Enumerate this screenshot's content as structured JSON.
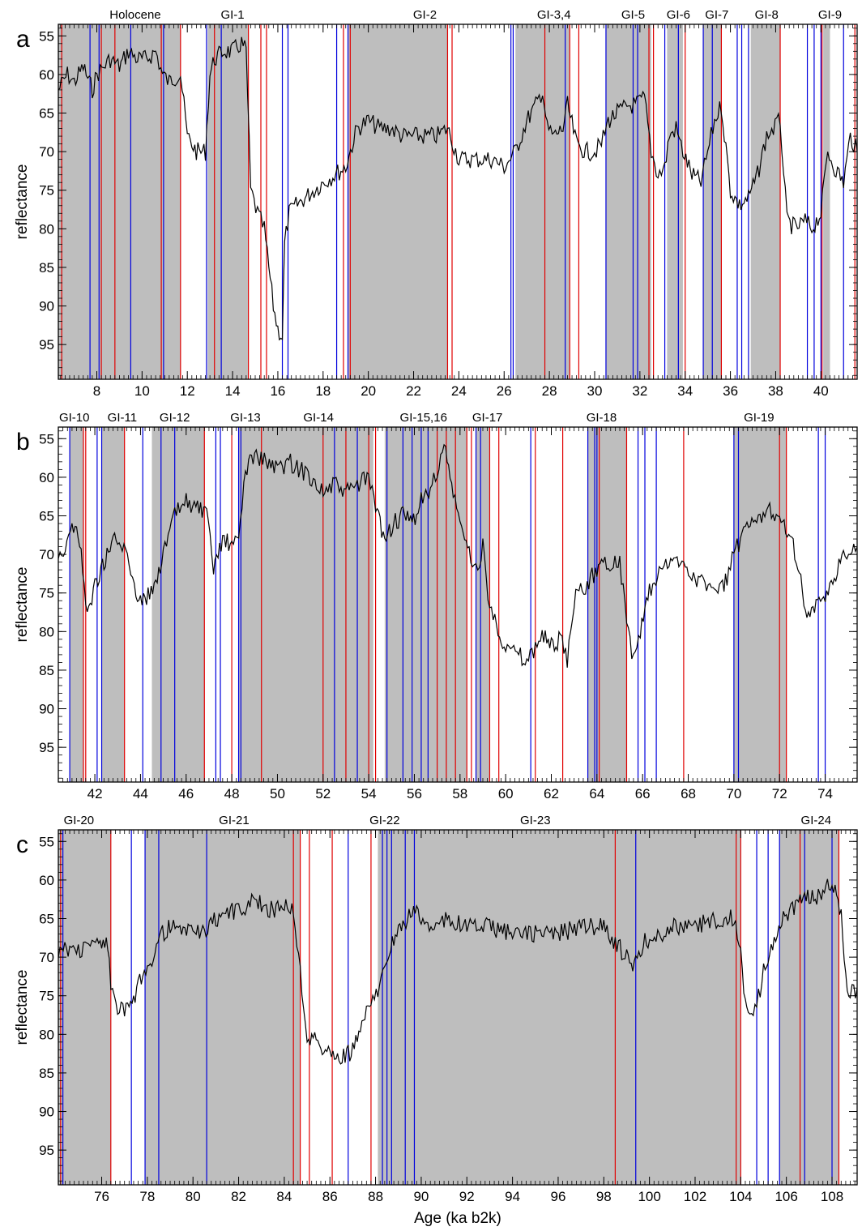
{
  "xlabel": "Age (ka b2k)",
  "colors": {
    "interstadial_shade": "#bebebe",
    "boundary_a": "#e00000",
    "boundary_b": "#0000dd",
    "trace": "#000000"
  },
  "chart_data": [
    {
      "type": "line",
      "panel_label": "a",
      "ylabel": "reflectance",
      "yreversed": true,
      "xlim": [
        6.3,
        41.6
      ],
      "ylim": [
        53.5,
        99.5
      ],
      "xticks": [
        "8",
        "10",
        "12",
        "14",
        "16",
        "18",
        "20",
        "22",
        "24",
        "26",
        "28",
        "30",
        "32",
        "34",
        "36",
        "38",
        "40"
      ],
      "xtick_values": [
        8,
        10,
        12,
        14,
        16,
        18,
        20,
        22,
        24,
        26,
        28,
        30,
        32,
        34,
        36,
        38,
        40
      ],
      "yticks": [
        "55",
        "60",
        "65",
        "70",
        "75",
        "80",
        "85",
        "90",
        "95"
      ],
      "ytick_values": [
        55,
        60,
        65,
        70,
        75,
        80,
        85,
        90,
        95
      ],
      "events": [
        {
          "label": "Holocene",
          "x": 9.7,
          "start": 6.3,
          "end": 11.7
        },
        {
          "label": "GI-1",
          "x": 14.0,
          "start": 12.9,
          "end": 14.7
        },
        {
          "label": "GI-2",
          "x": 22.5,
          "start": 19.1,
          "end": 23.5
        },
        {
          "label": "GI-3,4",
          "x": 28.2,
          "start": 26.5,
          "end": 28.9
        },
        {
          "label": "GI-5",
          "x": 31.7,
          "start": 30.5,
          "end": 32.5
        },
        {
          "label": "GI-6",
          "x": 33.7,
          "start": 33.2,
          "end": 33.9
        },
        {
          "label": "GI-7",
          "x": 35.4,
          "start": 34.8,
          "end": 35.6
        },
        {
          "label": "GI-8",
          "x": 37.6,
          "start": 36.9,
          "end": 38.2
        },
        {
          "label": "GI-9",
          "x": 40.4,
          "start": 40.1,
          "end": 40.4
        }
      ],
      "red_lines": [
        6.45,
        8.2,
        8.8,
        10.85,
        11.7,
        13.2,
        14.7,
        15.25,
        15.5,
        18.9,
        19.2,
        23.5,
        23.7,
        27.8,
        28.9,
        29.3,
        32.4,
        32.6,
        34.0,
        35.6,
        38.2,
        40.05,
        41.5
      ],
      "blue_lines": [
        7.7,
        8.1,
        9.5,
        10.95,
        12.85,
        13.5,
        16.2,
        16.45,
        18.6,
        19.1,
        26.3,
        26.4,
        28.7,
        30.5,
        31.7,
        31.9,
        33.1,
        33.7,
        34.8,
        35.2,
        36.3,
        36.5,
        36.8,
        39.4,
        39.7,
        40.0,
        41.0
      ],
      "series": [
        {
          "x": [
            6.3,
            6.7,
            7.0,
            7.4,
            7.8,
            8.0,
            8.3,
            8.6,
            9.0,
            9.4,
            9.8,
            10.2,
            10.6,
            10.9,
            11.2,
            11.6,
            11.7,
            12.0,
            12.4,
            12.8,
            13.0,
            13.2,
            13.6,
            14.0,
            14.4,
            14.6,
            14.8,
            15.1,
            15.4,
            15.6,
            15.8,
            16.0,
            16.2,
            16.3,
            16.5,
            16.8,
            17.2,
            17.6,
            18.0,
            18.5,
            19.0,
            19.5,
            20.0,
            20.5,
            21.0,
            21.5,
            22.0,
            22.5,
            23.0,
            23.5,
            24.0,
            24.5,
            25.0,
            25.5,
            26.0,
            26.5,
            27.0,
            27.4,
            27.7,
            27.9,
            28.2,
            28.6,
            28.8,
            29.2,
            29.6,
            30.0,
            30.3,
            30.6,
            31.0,
            31.5,
            31.8,
            32.2,
            32.5,
            32.8,
            33.1,
            33.3,
            33.6,
            33.9,
            34.3,
            34.7,
            35.0,
            35.3,
            35.6,
            36.0,
            36.4,
            36.8,
            37.2,
            37.6,
            37.9,
            38.2,
            38.5,
            38.9,
            39.3,
            39.6,
            40.0,
            40.3,
            40.6,
            41.0,
            41.3,
            41.6
          ],
          "y": [
            62,
            60,
            61,
            59,
            62,
            60,
            59,
            58,
            59,
            57,
            58,
            58,
            57,
            60,
            61,
            60,
            60,
            68,
            70,
            70,
            60,
            58,
            57,
            57,
            56,
            57,
            75,
            78,
            80,
            85,
            90,
            93,
            94,
            82,
            78,
            77,
            76,
            75,
            74,
            73,
            72,
            67,
            66,
            67,
            67,
            68,
            68,
            68,
            68,
            67,
            71,
            71,
            71,
            71,
            72,
            70,
            66,
            64,
            62,
            67,
            68,
            67,
            64,
            69,
            70,
            70,
            69,
            66,
            65,
            64,
            64,
            63,
            70,
            73,
            72,
            68,
            67,
            70,
            73,
            74,
            70,
            66,
            64,
            75,
            77,
            76,
            73,
            68,
            67,
            66,
            79,
            80,
            79,
            80,
            78,
            70,
            72,
            74,
            68,
            70
          ]
        }
      ]
    },
    {
      "type": "line",
      "panel_label": "b",
      "ylabel": "reflectance",
      "yreversed": true,
      "xlim": [
        40.4,
        75.4
      ],
      "ylim": [
        53.5,
        99.5
      ],
      "xticks": [
        "42",
        "44",
        "46",
        "48",
        "50",
        "52",
        "54",
        "56",
        "58",
        "60",
        "62",
        "64",
        "66",
        "68",
        "70",
        "72",
        "74"
      ],
      "xtick_values": [
        42,
        44,
        46,
        48,
        50,
        52,
        54,
        56,
        58,
        60,
        62,
        64,
        66,
        68,
        70,
        72,
        74
      ],
      "yticks": [
        "55",
        "60",
        "65",
        "70",
        "75",
        "80",
        "85",
        "90",
        "95"
      ],
      "ytick_values": [
        55,
        60,
        65,
        70,
        75,
        80,
        85,
        90,
        95
      ],
      "events": [
        {
          "label": "GI-10",
          "x": 41.1,
          "start": 40.9,
          "end": 41.5
        },
        {
          "label": "GI-11",
          "x": 43.2,
          "start": 42.3,
          "end": 43.3
        },
        {
          "label": "GI-12",
          "x": 45.5,
          "start": 44.5,
          "end": 46.8
        },
        {
          "label": "GI-13",
          "x": 48.6,
          "start": 48.3,
          "end": 49.3
        },
        {
          "label": "GI-14",
          "x": 51.8,
          "start": 49.3,
          "end": 54.2
        },
        {
          "label": "GI-15,16",
          "x": 56.4,
          "start": 54.7,
          "end": 58.3
        },
        {
          "label": "GI-17",
          "x": 59.2,
          "start": 58.7,
          "end": 59.3
        },
        {
          "label": "GI-18",
          "x": 64.2,
          "start": 63.6,
          "end": 65.3
        },
        {
          "label": "GI-19",
          "x": 71.1,
          "start": 70.0,
          "end": 72.3
        }
      ],
      "red_lines": [
        41.5,
        41.6,
        43.3,
        46.8,
        48.0,
        49.3,
        52.0,
        53.0,
        54.0,
        54.3,
        57.0,
        57.4,
        57.8,
        58.3,
        58.5,
        59.3,
        59.7,
        61.3,
        62.5,
        64.1,
        65.3,
        67.8,
        72.0,
        72.3
      ],
      "blue_lines": [
        40.9,
        42.1,
        42.3,
        44.1,
        44.9,
        45.5,
        47.3,
        47.5,
        48.3,
        48.4,
        52.5,
        53.5,
        54.8,
        55.5,
        55.9,
        56.3,
        56.6,
        58.7,
        58.9,
        61.1,
        63.6,
        63.9,
        64.0,
        65.8,
        66.1,
        66.6,
        70.0,
        70.2,
        73.7,
        74.0
      ],
      "series": [
        {
          "x": [
            40.4,
            40.7,
            41.0,
            41.2,
            41.4,
            41.6,
            41.8,
            42.0,
            42.4,
            42.8,
            43.2,
            43.5,
            43.8,
            44.2,
            44.6,
            45.0,
            45.5,
            46.0,
            46.5,
            46.9,
            47.2,
            47.6,
            48.0,
            48.3,
            48.6,
            49.0,
            49.5,
            50.0,
            50.5,
            51.0,
            51.5,
            52.0,
            52.5,
            53.0,
            53.5,
            54.0,
            54.3,
            54.7,
            55.1,
            55.5,
            55.9,
            56.3,
            56.7,
            57.0,
            57.3,
            57.7,
            58.0,
            58.4,
            58.7,
            59.0,
            59.3,
            59.6,
            60.0,
            60.5,
            61.0,
            61.3,
            61.6,
            62.0,
            62.4,
            62.7,
            63.0,
            63.5,
            64.0,
            64.2,
            64.5,
            65.0,
            65.3,
            65.6,
            65.9,
            66.3,
            66.8,
            67.3,
            67.8,
            68.3,
            68.8,
            69.3,
            69.7,
            70.0,
            70.5,
            71.0,
            71.5,
            72.0,
            72.4,
            72.8,
            73.2,
            73.6,
            74.0,
            74.4,
            74.8,
            75.1,
            75.4
          ],
          "y": [
            70,
            69,
            66,
            67,
            70,
            76,
            77,
            74,
            71,
            68,
            69,
            71,
            75,
            76,
            74,
            70,
            65,
            63,
            64,
            65,
            72,
            68,
            69,
            68,
            59,
            57,
            58,
            59,
            58,
            59,
            60,
            62,
            61,
            62,
            61,
            60,
            64,
            68,
            66,
            65,
            66,
            63,
            62,
            59,
            56,
            62,
            66,
            70,
            72,
            69,
            77,
            79,
            82,
            83,
            84,
            82,
            80,
            82,
            81,
            84,
            76,
            74,
            72,
            71,
            71,
            71,
            78,
            84,
            80,
            75,
            72,
            71,
            71,
            73,
            74,
            75,
            73,
            70,
            67,
            66,
            64,
            65,
            67,
            71,
            78,
            77,
            76,
            73,
            70,
            70,
            69
          ]
        }
      ]
    },
    {
      "type": "line",
      "panel_label": "c",
      "ylabel": "reflectance",
      "yreversed": true,
      "xlim": [
        74.1,
        109.1
      ],
      "ylim": [
        53.5,
        99.5
      ],
      "xticks": [
        "76",
        "78",
        "80",
        "82",
        "84",
        "86",
        "88",
        "90",
        "92",
        "94",
        "96",
        "98",
        "100",
        "102",
        "104",
        "106",
        "108"
      ],
      "xtick_values": [
        76,
        78,
        80,
        82,
        84,
        86,
        88,
        90,
        92,
        94,
        96,
        98,
        100,
        102,
        104,
        106,
        108
      ],
      "yticks": [
        "55",
        "60",
        "65",
        "70",
        "75",
        "80",
        "85",
        "90",
        "95"
      ],
      "ytick_values": [
        55,
        60,
        65,
        70,
        75,
        80,
        85,
        90,
        95
      ],
      "events": [
        {
          "label": "GI-20",
          "x": 75.0,
          "start": 74.1,
          "end": 76.4
        },
        {
          "label": "GI-21",
          "x": 81.8,
          "start": 77.9,
          "end": 84.7
        },
        {
          "label": "GI-22",
          "x": 88.4,
          "start": 88.1,
          "end": 88.7
        },
        {
          "label": "GI-23",
          "x": 95.0,
          "start": 88.7,
          "end": 104.0
        },
        {
          "label": "GI-24",
          "x": 107.3,
          "start": 105.7,
          "end": 108.3
        }
      ],
      "red_lines": [
        74.2,
        76.4,
        84.4,
        84.7,
        85.1,
        86.1,
        87.8,
        98.5,
        103.8,
        104.0,
        106.6,
        108.3
      ],
      "blue_lines": [
        74.3,
        77.3,
        77.9,
        78.5,
        80.6,
        86.8,
        88.3,
        88.5,
        88.7,
        89.3,
        89.7,
        99.4,
        104.7,
        105.2,
        105.7,
        106.8,
        108.0
      ],
      "series": [
        {
          "x": [
            74.1,
            74.6,
            75.2,
            75.8,
            76.2,
            76.4,
            76.7,
            77.0,
            77.4,
            77.8,
            78.2,
            78.6,
            79.0,
            79.5,
            80.0,
            80.5,
            81.0,
            81.5,
            82.0,
            82.5,
            83.0,
            83.5,
            84.0,
            84.4,
            84.7,
            85.0,
            85.4,
            85.8,
            86.2,
            86.6,
            87.0,
            87.4,
            87.8,
            88.1,
            88.4,
            88.8,
            89.2,
            89.6,
            90.0,
            90.5,
            91.0,
            92.0,
            93.0,
            94.0,
            95.0,
            96.0,
            97.0,
            98.0,
            98.5,
            99.0,
            99.4,
            99.8,
            100.5,
            101.0,
            102.0,
            103.0,
            103.7,
            104.0,
            104.2,
            104.4,
            104.7,
            105.0,
            105.4,
            105.8,
            106.2,
            106.6,
            107.0,
            107.4,
            107.8,
            108.2,
            108.4,
            108.6,
            108.8,
            109.1
          ],
          "y": [
            69,
            69,
            69,
            68,
            68,
            73,
            77,
            77,
            76,
            72,
            70,
            67,
            66,
            67,
            66,
            67,
            65,
            64,
            64,
            63,
            63,
            64,
            63,
            64,
            72,
            80,
            81,
            82,
            83,
            83,
            82,
            79,
            76,
            74,
            70,
            68,
            66,
            64,
            65,
            66,
            65,
            66,
            66,
            67,
            67,
            67,
            66,
            66,
            68,
            70,
            71,
            68,
            67,
            66,
            66,
            65,
            65,
            70,
            76,
            78,
            76,
            72,
            68,
            65,
            64,
            63,
            62,
            62,
            61,
            61,
            65,
            73,
            75,
            74
          ]
        }
      ]
    }
  ]
}
